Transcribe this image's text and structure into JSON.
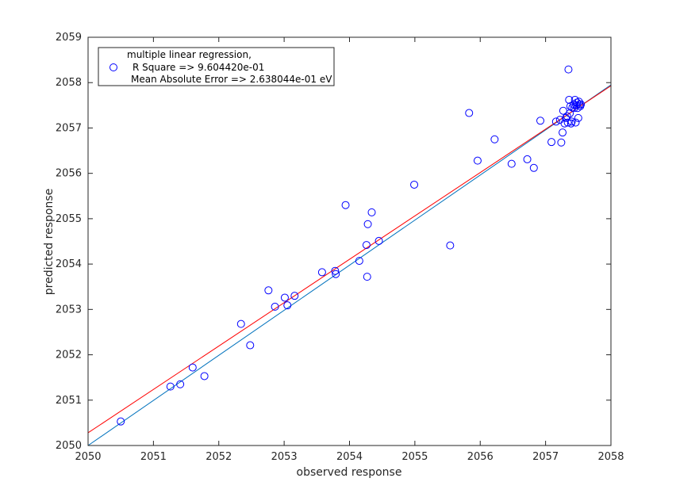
{
  "chart_data": {
    "type": "scatter",
    "xlabel": "observed response",
    "ylabel": "predicted response",
    "xlim": [
      2050,
      2058
    ],
    "ylim": [
      2050,
      2059
    ],
    "xticks": [
      2050,
      2051,
      2052,
      2053,
      2054,
      2055,
      2056,
      2057,
      2058
    ],
    "yticks": [
      2050,
      2051,
      2052,
      2053,
      2054,
      2055,
      2056,
      2057,
      2058,
      2059
    ],
    "legend": {
      "position": "top-left",
      "lines": [
        "multiple linear regression,",
        "R Square => 9.604420e-01",
        "Mean Absolute Error => 2.638044e-01 eV"
      ]
    },
    "series": [
      {
        "kind": "scatter",
        "color": "#0000ff",
        "marker": "circle",
        "points": [
          [
            2050.5,
            2050.53
          ],
          [
            2051.26,
            2051.3
          ],
          [
            2051.41,
            2051.35
          ],
          [
            2051.6,
            2051.72
          ],
          [
            2051.78,
            2051.53
          ],
          [
            2052.34,
            2052.68
          ],
          [
            2052.48,
            2052.21
          ],
          [
            2052.76,
            2053.42
          ],
          [
            2052.86,
            2053.06
          ],
          [
            2053.01,
            2053.26
          ],
          [
            2053.05,
            2053.09
          ],
          [
            2053.16,
            2053.3
          ],
          [
            2053.58,
            2053.82
          ],
          [
            2053.78,
            2053.85
          ],
          [
            2053.79,
            2053.78
          ],
          [
            2053.94,
            2055.3
          ],
          [
            2054.15,
            2054.07
          ],
          [
            2054.26,
            2054.42
          ],
          [
            2054.27,
            2053.72
          ],
          [
            2054.28,
            2054.88
          ],
          [
            2054.34,
            2055.14
          ],
          [
            2054.45,
            2054.51
          ],
          [
            2054.99,
            2055.75
          ],
          [
            2055.54,
            2054.41
          ],
          [
            2055.83,
            2057.33
          ],
          [
            2055.96,
            2056.28
          ],
          [
            2056.22,
            2056.75
          ],
          [
            2056.48,
            2056.21
          ],
          [
            2056.72,
            2056.31
          ],
          [
            2056.82,
            2056.12
          ],
          [
            2056.92,
            2057.16
          ],
          [
            2057.09,
            2056.69
          ],
          [
            2057.16,
            2057.14
          ],
          [
            2057.22,
            2057.18
          ],
          [
            2057.24,
            2056.68
          ],
          [
            2057.26,
            2056.9
          ],
          [
            2057.27,
            2057.38
          ],
          [
            2057.29,
            2057.1
          ],
          [
            2057.31,
            2057.22
          ],
          [
            2057.33,
            2057.26
          ],
          [
            2057.34,
            2057.12
          ],
          [
            2057.35,
            2058.29
          ],
          [
            2057.36,
            2057.62
          ],
          [
            2057.37,
            2057.32
          ],
          [
            2057.38,
            2057.48
          ],
          [
            2057.39,
            2057.1
          ],
          [
            2057.4,
            2057.14
          ],
          [
            2057.41,
            2057.45
          ],
          [
            2057.43,
            2057.52
          ],
          [
            2057.44,
            2057.44
          ],
          [
            2057.45,
            2057.62
          ],
          [
            2057.46,
            2057.12
          ],
          [
            2057.47,
            2057.5
          ],
          [
            2057.48,
            2057.56
          ],
          [
            2057.49,
            2057.44
          ],
          [
            2057.5,
            2057.22
          ],
          [
            2057.51,
            2057.58
          ],
          [
            2057.52,
            2057.52
          ],
          [
            2057.53,
            2057.48
          ],
          [
            2057.54,
            2057.52
          ]
        ]
      },
      {
        "kind": "line",
        "color": "#0072bd",
        "points": [
          [
            2050,
            2050
          ],
          [
            2058,
            2057.95
          ]
        ]
      },
      {
        "kind": "line",
        "color": "#ff0000",
        "points": [
          [
            2050,
            2050.28
          ],
          [
            2058,
            2057.93
          ]
        ]
      }
    ],
    "grid": false
  }
}
